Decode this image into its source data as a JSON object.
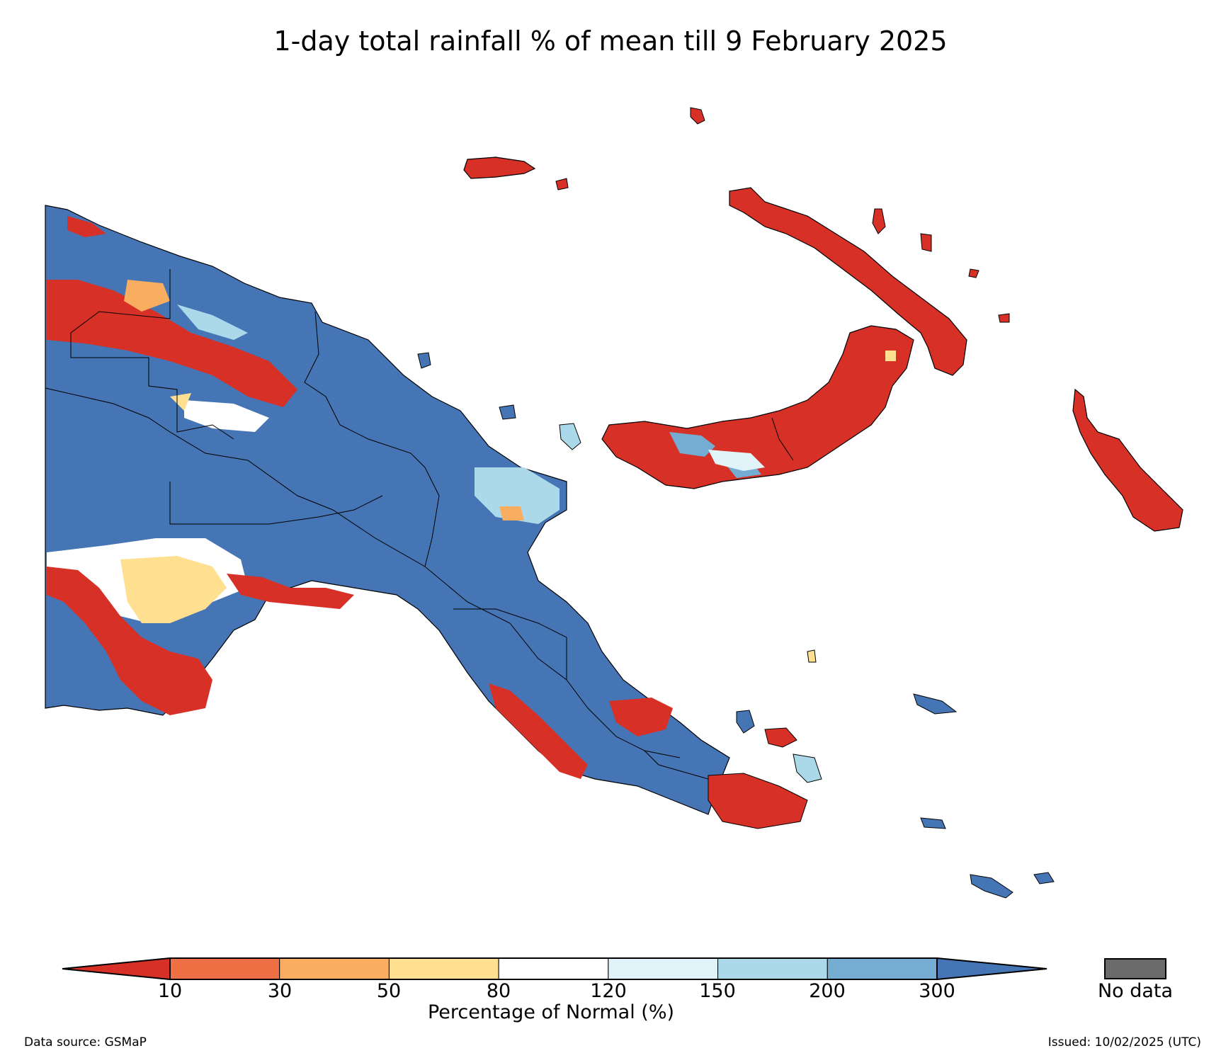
{
  "title": "1-day total rainfall % of mean till 9 February 2025",
  "colorbar": {
    "ticks": [
      "10",
      "30",
      "50",
      "80",
      "120",
      "150",
      "200",
      "300"
    ],
    "colors": [
      "#d73027",
      "#f07046",
      "#f9ad60",
      "#fee090",
      "#ffffff",
      "#e0f3f8",
      "#abd9e9",
      "#74add1",
      "#4575b4"
    ],
    "label": "Percentage of Normal (%)"
  },
  "no_data": {
    "label": "No data",
    "color": "#6b6b6b"
  },
  "footer": {
    "source": "Data source: GSMaP",
    "issued": "Issued: 10/02/2025 (UTC)"
  }
}
